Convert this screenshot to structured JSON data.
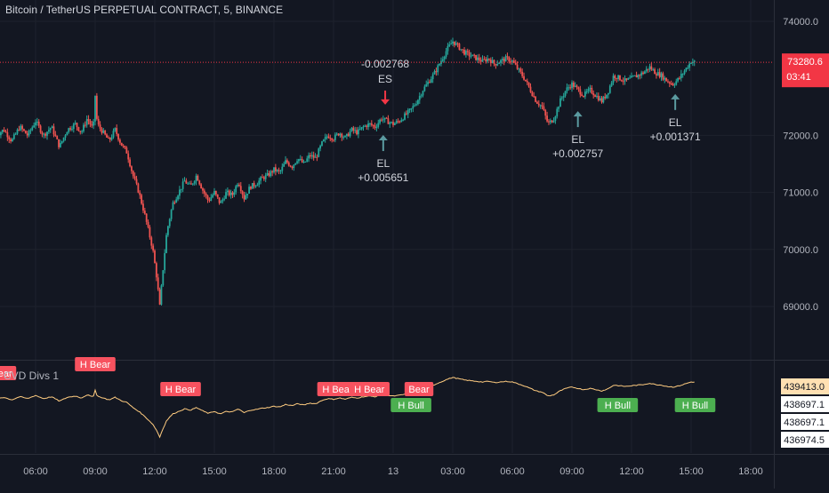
{
  "chart_data": {
    "type": "candlestick",
    "title": "Bitcoin / TetherUS PERPETUAL CONTRACT, 5, BINANCE",
    "price_axis": {
      "ticks": [
        "74000.0",
        "72000.0",
        "71000.0",
        "70000.0",
        "69000.0"
      ],
      "ylim": [
        68600,
        74200
      ]
    },
    "time_axis": {
      "labels": [
        "06:00",
        "09:00",
        "12:00",
        "15:00",
        "18:00",
        "21:00",
        "13",
        "03:00",
        "06:00",
        "09:00",
        "12:00",
        "15:00",
        "18:00"
      ]
    },
    "current_price": {
      "value": "73280.6",
      "countdown": "03:41",
      "color": "#f23645"
    },
    "price_path": [
      [
        4.0,
        72000
      ],
      [
        4.4,
        72100
      ],
      [
        4.8,
        71900
      ],
      [
        5.2,
        72150
      ],
      [
        5.6,
        72000
      ],
      [
        6.0,
        72250
      ],
      [
        6.4,
        72000
      ],
      [
        6.8,
        72150
      ],
      [
        7.2,
        71800
      ],
      [
        7.6,
        72100
      ],
      [
        8.0,
        72200
      ],
      [
        8.3,
        72050
      ],
      [
        8.6,
        72300
      ],
      [
        8.9,
        72100
      ],
      [
        9.0,
        72700
      ],
      [
        9.1,
        72200
      ],
      [
        9.4,
        72050
      ],
      [
        9.7,
        71900
      ],
      [
        10.0,
        72100
      ],
      [
        10.3,
        71850
      ],
      [
        10.6,
        71700
      ],
      [
        10.9,
        71300
      ],
      [
        11.2,
        71000
      ],
      [
        11.5,
        70600
      ],
      [
        11.7,
        70300
      ],
      [
        11.9,
        70000
      ],
      [
        12.1,
        69500
      ],
      [
        12.25,
        69000
      ],
      [
        12.4,
        69600
      ],
      [
        12.6,
        70300
      ],
      [
        12.9,
        70800
      ],
      [
        13.2,
        71000
      ],
      [
        13.5,
        71200
      ],
      [
        13.8,
        71100
      ],
      [
        14.1,
        71300
      ],
      [
        14.4,
        71050
      ],
      [
        14.7,
        70850
      ],
      [
        15.0,
        71000
      ],
      [
        15.3,
        70800
      ],
      [
        15.6,
        71000
      ],
      [
        15.9,
        70950
      ],
      [
        16.2,
        71200
      ],
      [
        16.5,
        70900
      ],
      [
        16.8,
        71100
      ],
      [
        17.1,
        71150
      ],
      [
        17.4,
        71250
      ],
      [
        17.7,
        71300
      ],
      [
        18.0,
        71400
      ],
      [
        18.3,
        71350
      ],
      [
        18.6,
        71550
      ],
      [
        18.9,
        71450
      ],
      [
        19.2,
        71600
      ],
      [
        19.5,
        71500
      ],
      [
        19.8,
        71650
      ],
      [
        20.1,
        71600
      ],
      [
        20.4,
        71850
      ],
      [
        20.7,
        72000
      ],
      [
        21.0,
        71950
      ],
      [
        21.3,
        72050
      ],
      [
        21.6,
        71950
      ],
      [
        21.9,
        72100
      ],
      [
        22.2,
        72050
      ],
      [
        22.5,
        72150
      ],
      [
        22.8,
        72200
      ],
      [
        23.1,
        72150
      ],
      [
        23.4,
        72300
      ],
      [
        23.7,
        72250
      ],
      [
        24.0,
        72200
      ],
      [
        24.3,
        72250
      ],
      [
        24.6,
        72350
      ],
      [
        24.9,
        72450
      ],
      [
        25.2,
        72600
      ],
      [
        25.5,
        72800
      ],
      [
        25.8,
        72950
      ],
      [
        26.1,
        73100
      ],
      [
        26.4,
        73300
      ],
      [
        26.7,
        73500
      ],
      [
        27.0,
        73650
      ],
      [
        27.3,
        73550
      ],
      [
        27.6,
        73450
      ],
      [
        27.9,
        73400
      ],
      [
        28.2,
        73350
      ],
      [
        28.5,
        73300
      ],
      [
        28.8,
        73350
      ],
      [
        29.1,
        73250
      ],
      [
        29.4,
        73300
      ],
      [
        29.7,
        73350
      ],
      [
        30.0,
        73300
      ],
      [
        30.3,
        73150
      ],
      [
        30.6,
        73000
      ],
      [
        30.9,
        72800
      ],
      [
        31.2,
        72600
      ],
      [
        31.5,
        72500
      ],
      [
        31.8,
        72200
      ],
      [
        32.1,
        72300
      ],
      [
        32.4,
        72600
      ],
      [
        32.7,
        72800
      ],
      [
        33.0,
        72900
      ],
      [
        33.3,
        72800
      ],
      [
        33.6,
        72700
      ],
      [
        33.9,
        72800
      ],
      [
        34.2,
        72700
      ],
      [
        34.5,
        72600
      ],
      [
        34.8,
        72750
      ],
      [
        35.1,
        73050
      ],
      [
        35.4,
        73000
      ],
      [
        35.7,
        72950
      ],
      [
        36.0,
        73000
      ],
      [
        36.3,
        73050
      ],
      [
        36.6,
        73100
      ],
      [
        36.9,
        73200
      ],
      [
        37.2,
        73100
      ],
      [
        37.5,
        73050
      ],
      [
        37.8,
        72950
      ],
      [
        38.1,
        72900
      ],
      [
        38.4,
        73000
      ],
      [
        38.7,
        73150
      ],
      [
        39.0,
        73300
      ],
      [
        39.2,
        73280.6
      ]
    ],
    "signals": [
      {
        "kind": "ES",
        "label": "ES",
        "value": "-0.002768",
        "x": 23.6,
        "price": 72350,
        "dir": "down",
        "color": "#f23645"
      },
      {
        "kind": "EL",
        "label": "EL",
        "value": "+0.005651",
        "x": 23.5,
        "price": 72130,
        "dir": "up",
        "color": "#26c6da"
      },
      {
        "kind": "EL",
        "label": "EL",
        "value": "+0.002757",
        "x": 33.3,
        "price": 72550,
        "dir": "up",
        "color": "#26c6da"
      },
      {
        "kind": "EL",
        "label": "EL",
        "value": "+0.001371",
        "x": 38.2,
        "price": 72850,
        "dir": "up",
        "color": "#26c6da"
      }
    ],
    "indicator": {
      "title": "CVD Divs 1",
      "price_labels": [
        "439413.0",
        "438697.1",
        "438697.1",
        "436974.5"
      ],
      "line_color": "#ffcc80",
      "labels": [
        {
          "text": "Bear",
          "x": 4.3,
          "color": "#f7525f"
        },
        {
          "text": "H Bear",
          "x": 9.0,
          "color": "#f7525f"
        },
        {
          "text": "H Bear",
          "x": 13.3,
          "color": "#f7525f"
        },
        {
          "text": "H Bear",
          "x": 21.2,
          "color": "#f7525f"
        },
        {
          "text": "H Bear",
          "x": 22.8,
          "color": "#f7525f"
        },
        {
          "text": "Bear",
          "x": 25.3,
          "color": "#f7525f"
        },
        {
          "text": "H Bull",
          "x": 24.9,
          "color": "#4caf50"
        },
        {
          "text": "H Bull",
          "x": 35.3,
          "color": "#4caf50"
        },
        {
          "text": "H Bull",
          "x": 39.2,
          "color": "#4caf50"
        }
      ]
    }
  }
}
